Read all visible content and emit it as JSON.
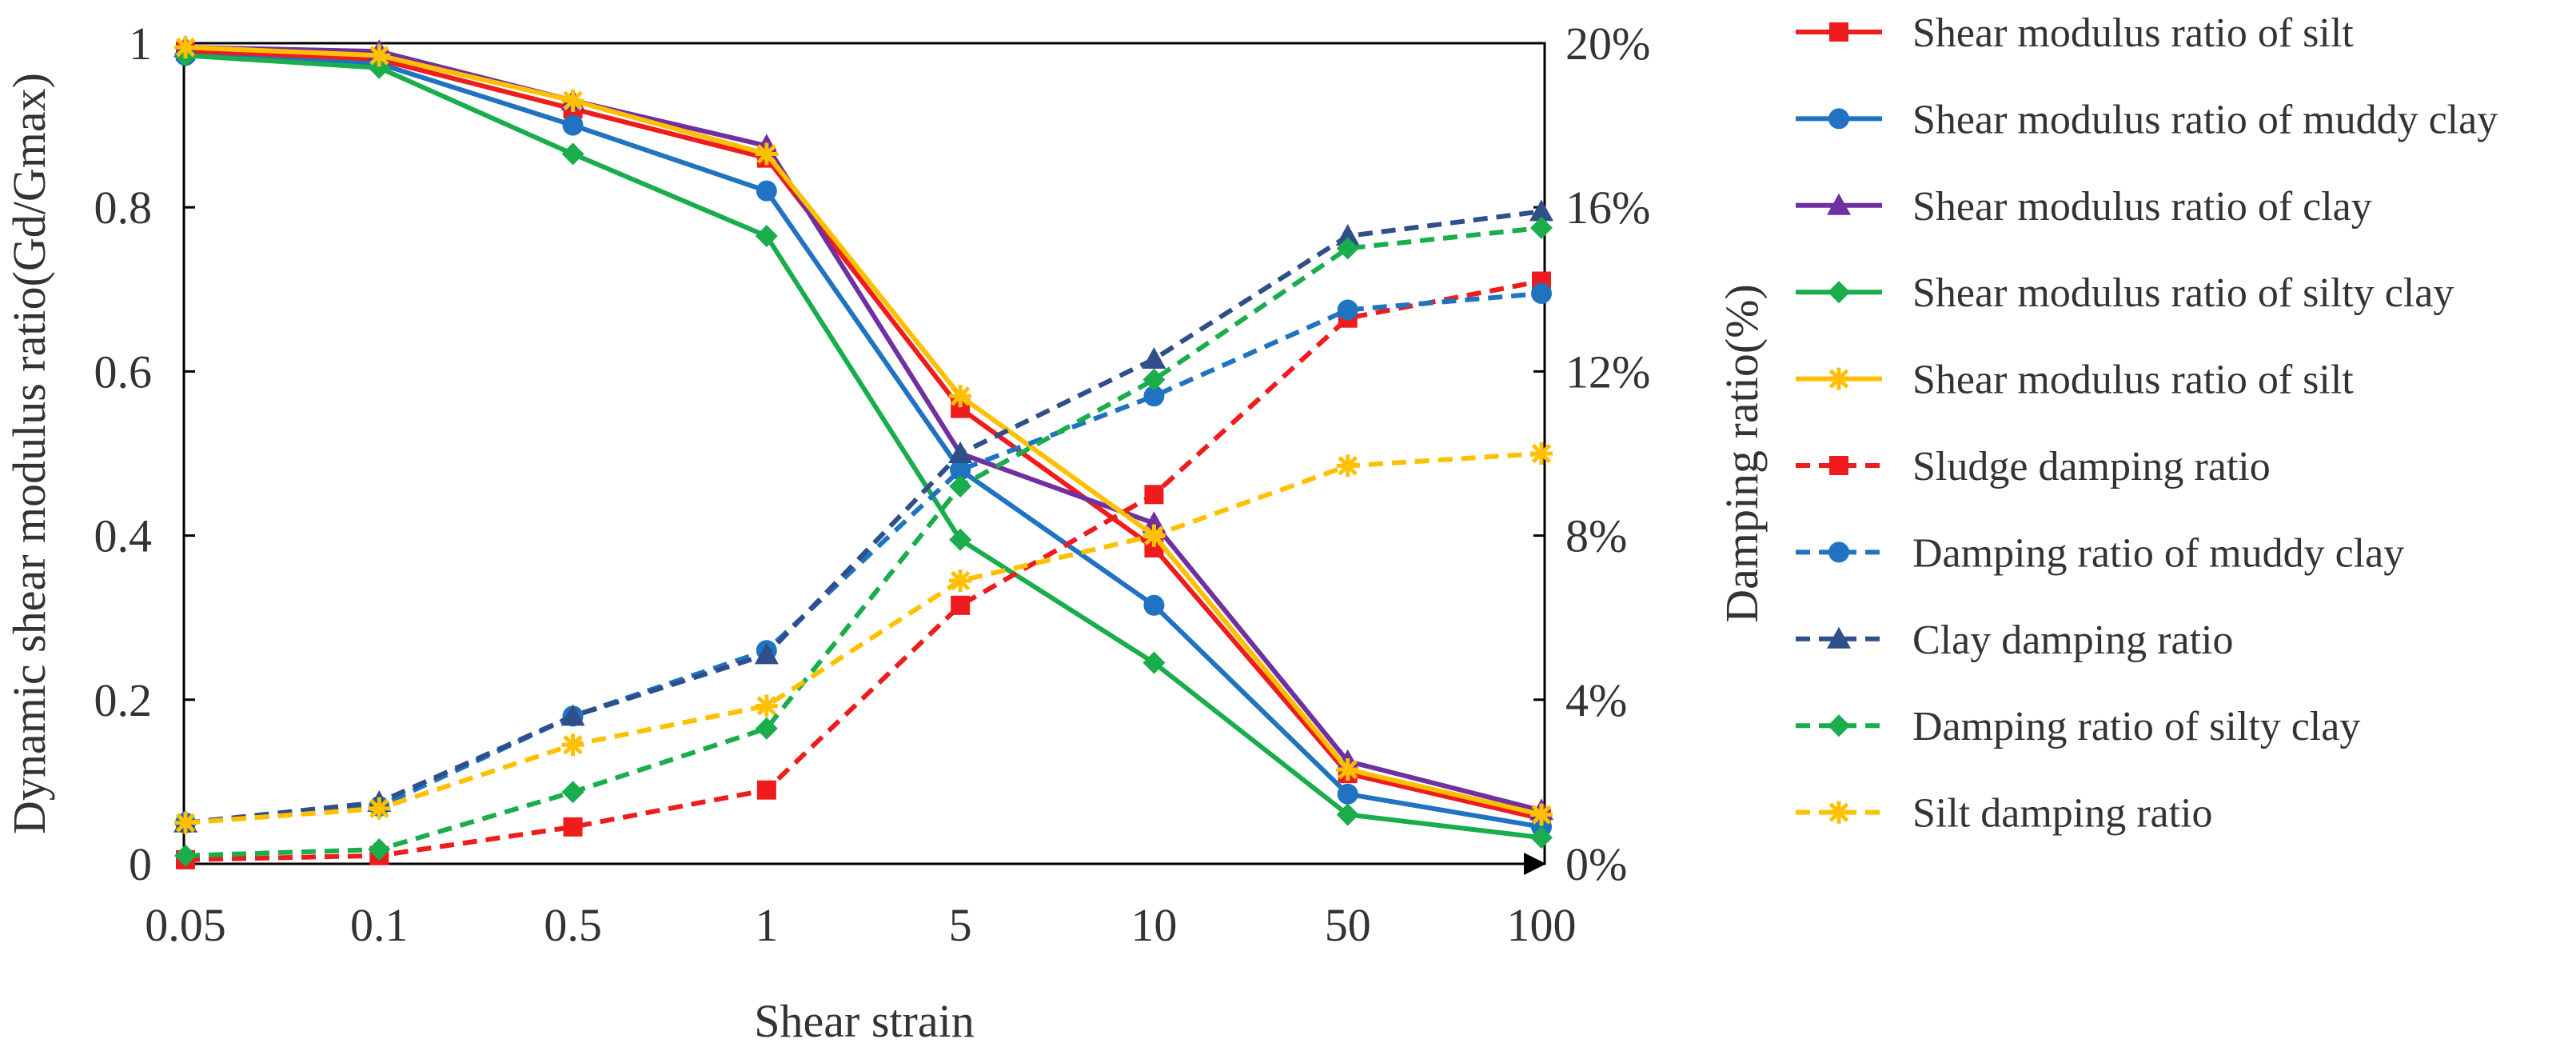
{
  "chart_data": {
    "type": "line",
    "title": "",
    "xlabel": "Shear strain",
    "ylabel": "Dynamic shear modulus ratio(Gd/Gmax)",
    "y2label": "Damping ratio(%)",
    "categories": [
      "0.05",
      "0.1",
      "0.5",
      "1",
      "5",
      "10",
      "50",
      "100"
    ],
    "ylim": [
      0,
      1
    ],
    "y2lim": [
      0,
      20
    ],
    "y_ticks": [
      "0",
      "0.2",
      "0.4",
      "0.6",
      "0.8",
      "1"
    ],
    "y2_ticks": [
      "0%",
      "4%",
      "8%",
      "12%",
      "16%",
      "20%"
    ],
    "legend_position": "right",
    "series": [
      {
        "name": "Shear modulus ratio of silt",
        "axis": "left",
        "color": "#ee1c1c",
        "marker": "square",
        "dash": "solid",
        "values": [
          0.99,
          0.98,
          0.92,
          0.86,
          0.555,
          0.385,
          0.11,
          0.055
        ]
      },
      {
        "name": "Shear modulus ratio of muddy clay",
        "axis": "left",
        "color": "#1f73c1",
        "marker": "circle",
        "dash": "solid",
        "values": [
          0.985,
          0.975,
          0.9,
          0.82,
          0.48,
          0.315,
          0.085,
          0.045
        ]
      },
      {
        "name": "Shear modulus ratio of clay",
        "axis": "left",
        "color": "#7030a0",
        "marker": "triangle",
        "dash": "solid",
        "values": [
          0.995,
          0.99,
          0.93,
          0.875,
          0.5,
          0.415,
          0.125,
          0.065
        ]
      },
      {
        "name": "Shear modulus ratio of silty clay",
        "axis": "left",
        "color": "#1aad4c",
        "marker": "diamond",
        "dash": "solid",
        "values": [
          0.985,
          0.97,
          0.865,
          0.765,
          0.395,
          0.245,
          0.06,
          0.032
        ]
      },
      {
        "name": "Shear modulus ratio of silt",
        "axis": "left",
        "color": "#ffc000",
        "marker": "star",
        "dash": "solid",
        "values": [
          0.995,
          0.985,
          0.93,
          0.865,
          0.57,
          0.4,
          0.115,
          0.06
        ]
      },
      {
        "name": "Sludge damping ratio",
        "axis": "right",
        "color": "#ee1c1c",
        "marker": "square",
        "dash": "dashed",
        "values": [
          0.1,
          0.2,
          0.9,
          1.8,
          6.3,
          9.0,
          13.3,
          14.2
        ]
      },
      {
        "name": "Damping ratio of muddy clay",
        "axis": "right",
        "color": "#1f73c1",
        "marker": "circle",
        "dash": "dashed",
        "values": [
          1.0,
          1.4,
          3.6,
          5.2,
          9.6,
          11.4,
          13.5,
          13.9
        ]
      },
      {
        "name": "Clay damping ratio",
        "axis": "right",
        "color": "#2e4f8a",
        "marker": "triangle",
        "dash": "dashed",
        "values": [
          1.0,
          1.5,
          3.6,
          5.1,
          10.0,
          12.3,
          15.3,
          15.9
        ]
      },
      {
        "name": "Damping ratio of silty clay",
        "axis": "right",
        "color": "#1aad4c",
        "marker": "diamond",
        "dash": "dashed",
        "values": [
          0.2,
          0.35,
          1.75,
          3.3,
          9.2,
          11.8,
          15.0,
          15.5
        ]
      },
      {
        "name": "Silt damping ratio",
        "axis": "right",
        "color": "#ffc000",
        "marker": "star",
        "dash": "dashed",
        "values": [
          1.0,
          1.35,
          2.9,
          3.85,
          6.9,
          8.0,
          9.7,
          10.0
        ]
      }
    ]
  }
}
